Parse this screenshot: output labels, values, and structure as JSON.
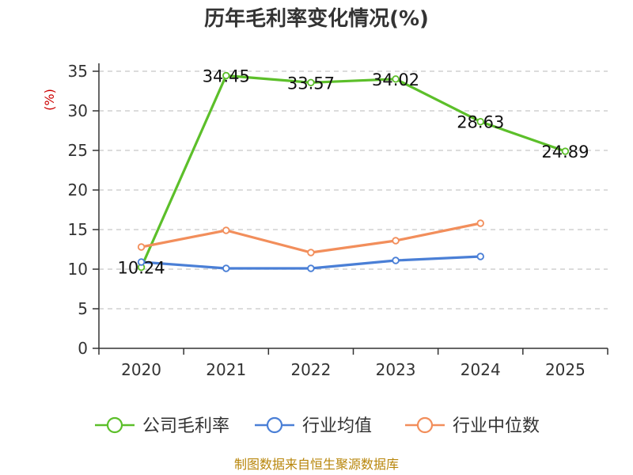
{
  "chart_data": {
    "type": "line",
    "title": "历年毛利率变化情况(%)",
    "ylabel": "(%)",
    "categories": [
      "2020",
      "2021",
      "2022",
      "2023",
      "2024",
      "2025"
    ],
    "ylim": [
      0,
      35
    ],
    "yticks": [
      0,
      5,
      10,
      15,
      20,
      25,
      30,
      35
    ],
    "grid": true,
    "legend_position": "bottom",
    "series": [
      {
        "name": "公司毛利率",
        "color": "#5cbf2a",
        "values": [
          10.24,
          34.45,
          33.57,
          34.02,
          28.63,
          24.89
        ],
        "labels": [
          "10.24",
          "34.45",
          "33.57",
          "34.02",
          "28.63",
          "24.89"
        ]
      },
      {
        "name": "行业均值",
        "color": "#4a7fd6",
        "values": [
          10.9,
          10.1,
          10.1,
          11.1,
          11.6,
          null
        ]
      },
      {
        "name": "行业中位数",
        "color": "#f28e5b",
        "values": [
          12.8,
          14.9,
          12.1,
          13.6,
          15.8,
          null
        ]
      }
    ],
    "source": "制图数据来自恒生聚源数据库"
  }
}
